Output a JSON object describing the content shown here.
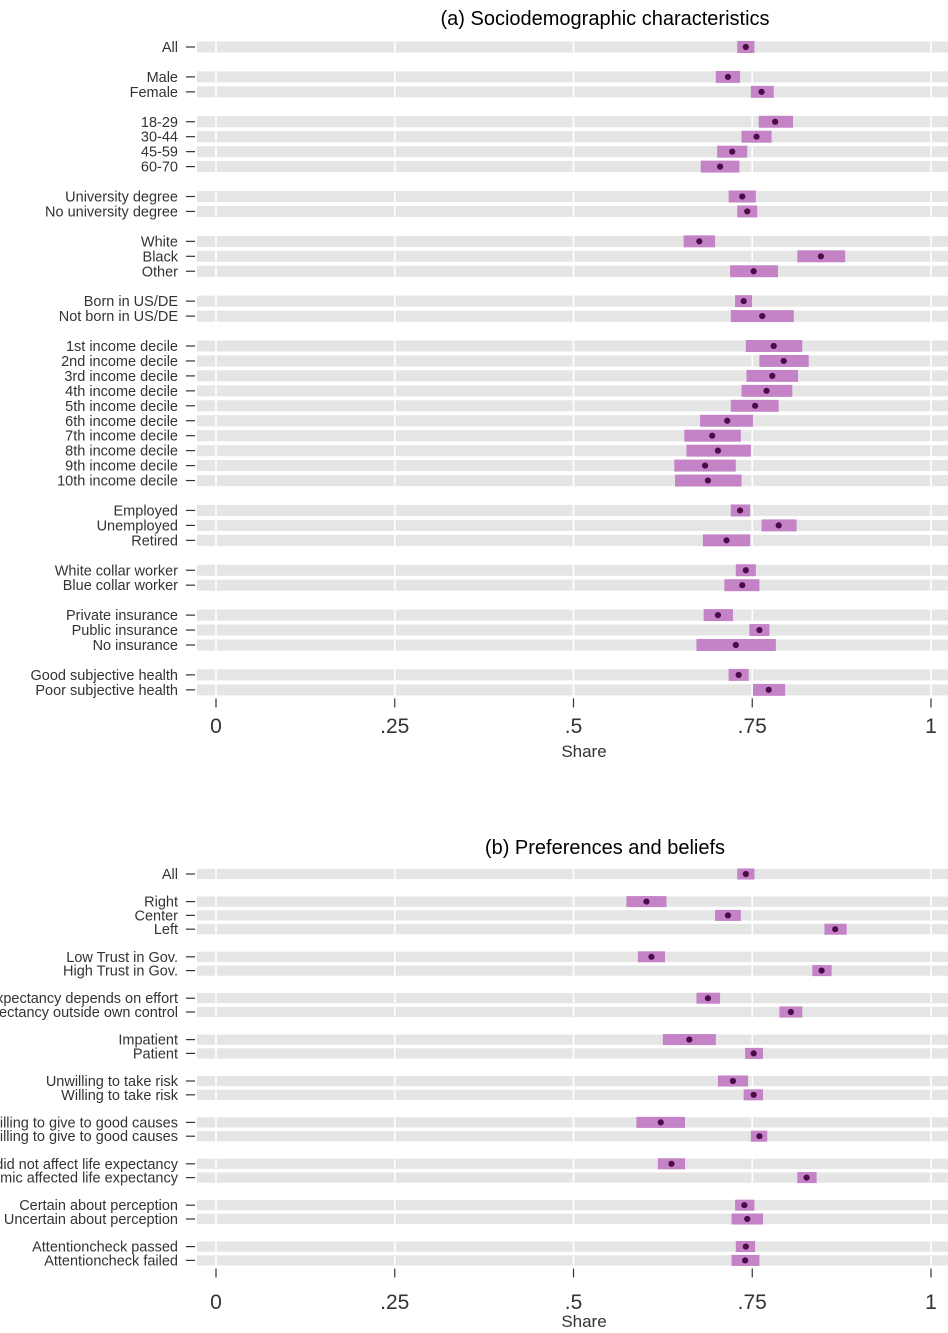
{
  "colors": {
    "band": "#e5e5e5",
    "grid": "#ffffff",
    "ci": "#c383c6",
    "point": "#4d0a45",
    "tick_line": "#333333"
  },
  "chart_data": [
    {
      "type": "dot-with-confidence-interval",
      "title": "(a) Sociodemographic characteristics",
      "xlabel": "Share",
      "xlim": [
        0,
        1
      ],
      "xticks": [
        0,
        0.25,
        0.5,
        0.75,
        1
      ],
      "xtick_labels": [
        "0",
        ".25",
        ".5",
        ".75",
        "1"
      ],
      "grid": true,
      "groups": [
        {
          "items": [
            {
              "label": "All",
              "value": 0.741,
              "ci": [
                0.729,
                0.753
              ]
            }
          ]
        },
        {
          "items": [
            {
              "label": "Male",
              "value": 0.716,
              "ci": [
                0.699,
                0.733
              ]
            },
            {
              "label": "Female",
              "value": 0.763,
              "ci": [
                0.748,
                0.78
              ]
            }
          ]
        },
        {
          "items": [
            {
              "label": "18-29",
              "value": 0.782,
              "ci": [
                0.759,
                0.807
              ]
            },
            {
              "label": "30-44",
              "value": 0.756,
              "ci": [
                0.735,
                0.777
              ]
            },
            {
              "label": "45-59",
              "value": 0.722,
              "ci": [
                0.701,
                0.743
              ]
            },
            {
              "label": "60-70",
              "value": 0.705,
              "ci": [
                0.678,
                0.732
              ]
            }
          ]
        },
        {
          "items": [
            {
              "label": "University degree",
              "value": 0.736,
              "ci": [
                0.717,
                0.755
              ]
            },
            {
              "label": "No university degree",
              "value": 0.743,
              "ci": [
                0.729,
                0.757
              ]
            }
          ]
        },
        {
          "items": [
            {
              "label": "White",
              "value": 0.676,
              "ci": [
                0.654,
                0.698
              ]
            },
            {
              "label": "Black",
              "value": 0.846,
              "ci": [
                0.813,
                0.88
              ]
            },
            {
              "label": "Other",
              "value": 0.752,
              "ci": [
                0.719,
                0.786
              ]
            }
          ]
        },
        {
          "items": [
            {
              "label": "Born in US/DE",
              "value": 0.738,
              "ci": [
                0.726,
                0.75
              ]
            },
            {
              "label": "Not born in US/DE",
              "value": 0.764,
              "ci": [
                0.72,
                0.808
              ]
            }
          ]
        },
        {
          "items": [
            {
              "label": "1st income decile",
              "value": 0.78,
              "ci": [
                0.741,
                0.82
              ]
            },
            {
              "label": "2nd income decile",
              "value": 0.794,
              "ci": [
                0.76,
                0.829
              ]
            },
            {
              "label": "3rd income decile",
              "value": 0.778,
              "ci": [
                0.742,
                0.814
              ]
            },
            {
              "label": "4th income decile",
              "value": 0.77,
              "ci": [
                0.735,
                0.806
              ]
            },
            {
              "label": "5th income decile",
              "value": 0.754,
              "ci": [
                0.72,
                0.787
              ]
            },
            {
              "label": "6th income decile",
              "value": 0.715,
              "ci": [
                0.677,
                0.751
              ]
            },
            {
              "label": "7th income decile",
              "value": 0.694,
              "ci": [
                0.655,
                0.734
              ]
            },
            {
              "label": "8th income decile",
              "value": 0.702,
              "ci": [
                0.658,
                0.748
              ]
            },
            {
              "label": "9th income decile",
              "value": 0.684,
              "ci": [
                0.641,
                0.727
              ]
            },
            {
              "label": "10th income decile",
              "value": 0.688,
              "ci": [
                0.642,
                0.735
              ]
            }
          ]
        },
        {
          "items": [
            {
              "label": "Employed",
              "value": 0.733,
              "ci": [
                0.72,
                0.747
              ]
            },
            {
              "label": "Unemployed",
              "value": 0.787,
              "ci": [
                0.763,
                0.812
              ]
            },
            {
              "label": "Retired",
              "value": 0.714,
              "ci": [
                0.681,
                0.747
              ]
            }
          ]
        },
        {
          "items": [
            {
              "label": "White collar worker",
              "value": 0.741,
              "ci": [
                0.727,
                0.755
              ]
            },
            {
              "label": "Blue collar worker",
              "value": 0.736,
              "ci": [
                0.711,
                0.76
              ]
            }
          ]
        },
        {
          "items": [
            {
              "label": "Private insurance",
              "value": 0.702,
              "ci": [
                0.682,
                0.723
              ]
            },
            {
              "label": "Public insurance",
              "value": 0.76,
              "ci": [
                0.746,
                0.774
              ]
            },
            {
              "label": "No insurance",
              "value": 0.727,
              "ci": [
                0.672,
                0.783
              ]
            }
          ]
        },
        {
          "items": [
            {
              "label": "Good subjective health",
              "value": 0.731,
              "ci": [
                0.717,
                0.745
              ]
            },
            {
              "label": "Poor subjective health",
              "value": 0.773,
              "ci": [
                0.751,
                0.796
              ]
            }
          ]
        }
      ]
    },
    {
      "type": "dot-with-confidence-interval",
      "title": "(b) Preferences and beliefs",
      "xlabel": "Share",
      "xlim": [
        0,
        1
      ],
      "xticks": [
        0,
        0.25,
        0.5,
        0.75,
        1
      ],
      "xtick_labels": [
        "0",
        ".25",
        ".5",
        ".75",
        "1"
      ],
      "grid": true,
      "groups": [
        {
          "items": [
            {
              "label": "All",
              "value": 0.741,
              "ci": [
                0.729,
                0.753
              ]
            }
          ]
        },
        {
          "items": [
            {
              "label": "Right",
              "value": 0.602,
              "ci": [
                0.574,
                0.63
              ]
            },
            {
              "label": "Center",
              "value": 0.716,
              "ci": [
                0.698,
                0.734
              ]
            },
            {
              "label": "Left",
              "value": 0.866,
              "ci": [
                0.851,
                0.882
              ]
            }
          ]
        },
        {
          "items": [
            {
              "label": "Low Trust in Gov.",
              "value": 0.609,
              "ci": [
                0.59,
                0.628
              ]
            },
            {
              "label": "High Trust in Gov.",
              "value": 0.847,
              "ci": [
                0.834,
                0.861
              ]
            }
          ]
        },
        {
          "items": [
            {
              "label": "Life expectancy depends on effort",
              "value": 0.688,
              "ci": [
                0.672,
                0.705
              ]
            },
            {
              "label": "Life expectancy outside own control",
              "value": 0.804,
              "ci": [
                0.788,
                0.82
              ]
            }
          ]
        },
        {
          "items": [
            {
              "label": "Impatient",
              "value": 0.662,
              "ci": [
                0.625,
                0.699
              ]
            },
            {
              "label": "Patient",
              "value": 0.752,
              "ci": [
                0.74,
                0.765
              ]
            }
          ]
        },
        {
          "items": [
            {
              "label": "Unwilling to take risk",
              "value": 0.723,
              "ci": [
                0.702,
                0.744
              ]
            },
            {
              "label": "Willing to take risk",
              "value": 0.752,
              "ci": [
                0.738,
                0.765
              ]
            }
          ]
        },
        {
          "items": [
            {
              "label": "Unwilling to give to good causes",
              "value": 0.622,
              "ci": [
                0.588,
                0.656
              ]
            },
            {
              "label": "Willing to give to good causes",
              "value": 0.76,
              "ci": [
                0.748,
                0.771
              ]
            }
          ]
        },
        {
          "items": [
            {
              "label": "Pandemic did not affect life expectancy",
              "value": 0.637,
              "ci": [
                0.618,
                0.656
              ]
            },
            {
              "label": "Pandemic affected life expectancy",
              "value": 0.826,
              "ci": [
                0.813,
                0.84
              ]
            }
          ]
        },
        {
          "items": [
            {
              "label": "Certain about perception",
              "value": 0.739,
              "ci": [
                0.726,
                0.753
              ]
            },
            {
              "label": "Uncertain about perception",
              "value": 0.743,
              "ci": [
                0.721,
                0.765
              ]
            }
          ]
        },
        {
          "items": [
            {
              "label": "Attentioncheck passed",
              "value": 0.741,
              "ci": [
                0.727,
                0.754
              ]
            },
            {
              "label": "Attentioncheck failed",
              "value": 0.74,
              "ci": [
                0.721,
                0.76
              ]
            }
          ]
        }
      ]
    }
  ]
}
